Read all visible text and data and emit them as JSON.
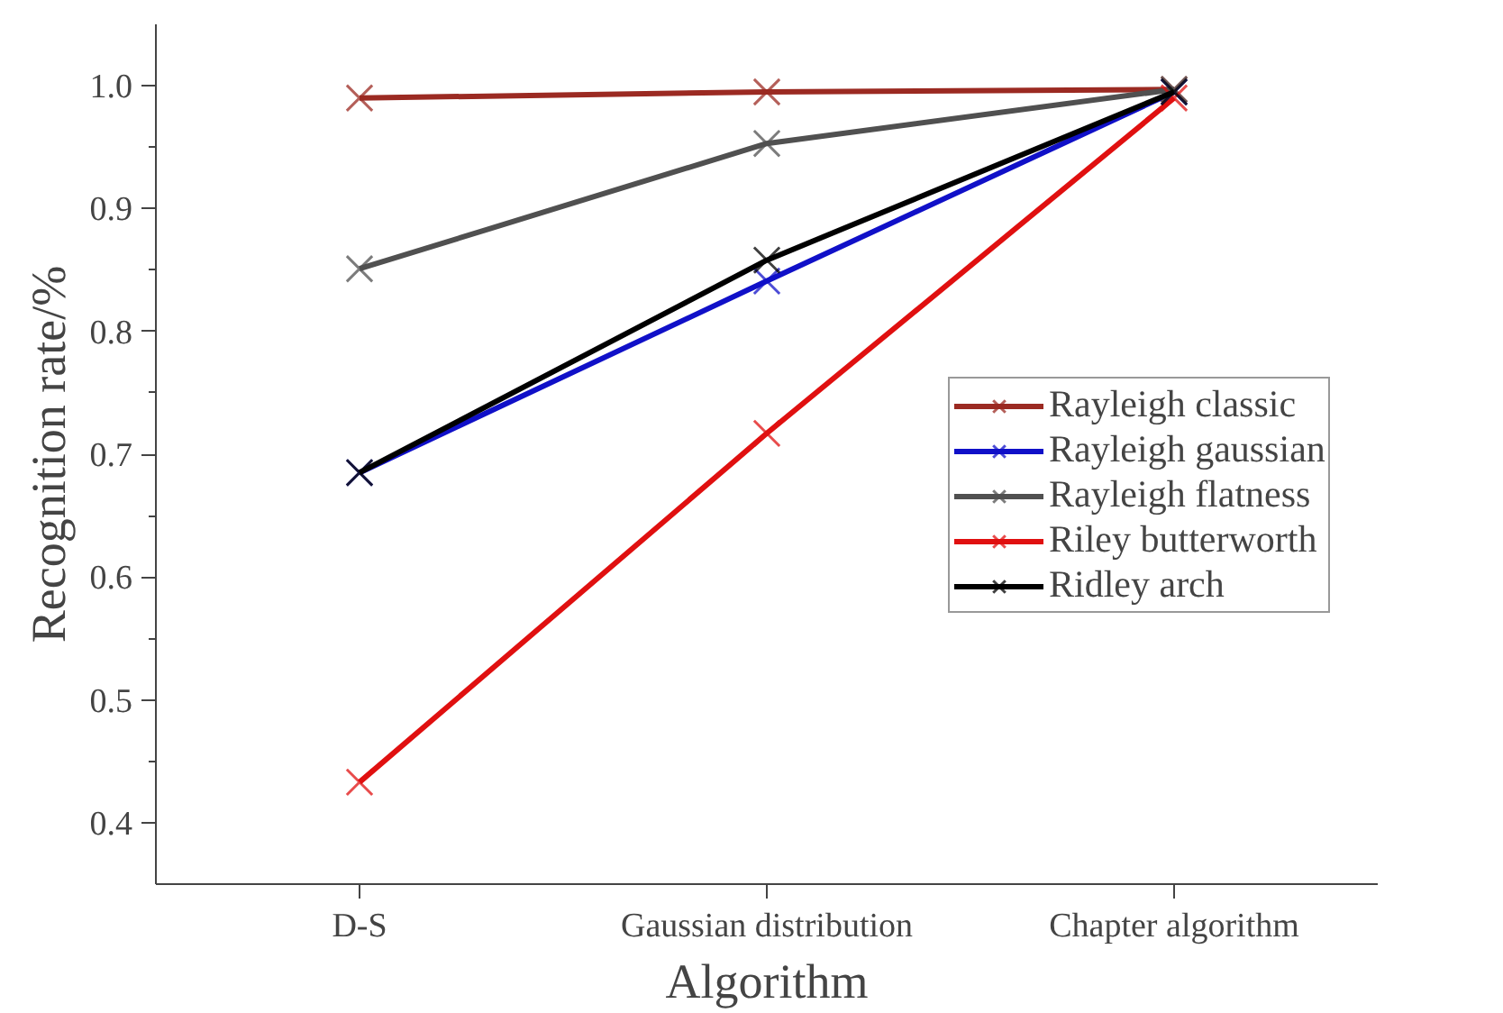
{
  "chart_data": {
    "type": "line",
    "xlabel": "Algorithm",
    "ylabel": "Recognition rate/%",
    "categories": [
      "D-S",
      "Gaussian distribution",
      "Chapter algorithm"
    ],
    "series": [
      {
        "name": "Rayleigh classic",
        "color": "#9b2a22",
        "values": [
          0.99,
          0.995,
          0.997
        ]
      },
      {
        "name": "Rayleigh gaussian",
        "color": "#1010c8",
        "values": [
          0.685,
          0.841,
          0.995
        ]
      },
      {
        "name": "Rayleigh flatness",
        "color": "#505050",
        "values": [
          0.851,
          0.953,
          0.997
        ]
      },
      {
        "name": "Riley butterworth",
        "color": "#e01010",
        "values": [
          0.433,
          0.717,
          0.99
        ]
      },
      {
        "name": "Ridley arch",
        "color": "#000000",
        "values": [
          0.685,
          0.858,
          0.995
        ]
      }
    ],
    "ylim": [
      0.35,
      1.05
    ],
    "yticks": [
      0.4,
      0.5,
      0.6,
      0.7,
      0.8,
      0.9,
      {
        "value": 1.0,
        "label": "1.0"
      }
    ],
    "grid": false,
    "legend": "right",
    "marker": "cross",
    "line_style": "solid"
  }
}
